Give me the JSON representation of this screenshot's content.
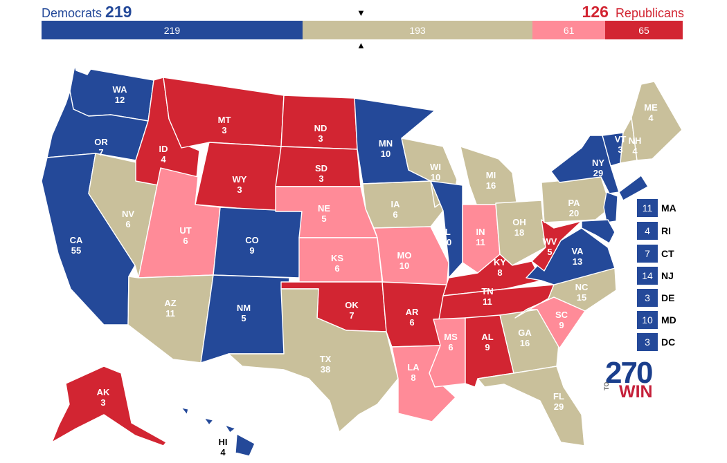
{
  "header": {
    "dem_label": "Democrats",
    "dem_total": "219",
    "rep_total": "126",
    "rep_label": "Republicans"
  },
  "colors": {
    "safe_dem": "#244999",
    "safe_rep": "#d22532",
    "lean_rep": "#ff8b98",
    "tossup": "#c9c09b",
    "dem_header": "#244999",
    "rep_header": "#d22532"
  },
  "bar": [
    {
      "value": "219",
      "votes": 219,
      "category": "safe_dem"
    },
    {
      "value": "193",
      "votes": 193,
      "category": "tossup"
    },
    {
      "value": "61",
      "votes": 61,
      "category": "lean_rep"
    },
    {
      "value": "65",
      "votes": 65,
      "category": "safe_rep"
    }
  ],
  "markers": {
    "top": "▼",
    "bottom": "▲"
  },
  "states": [
    {
      "abbr": "WA",
      "ev": "12",
      "cat": "safe_dem"
    },
    {
      "abbr": "OR",
      "ev": "7",
      "cat": "safe_dem"
    },
    {
      "abbr": "CA",
      "ev": "55",
      "cat": "safe_dem"
    },
    {
      "abbr": "NV",
      "ev": "6",
      "cat": "tossup"
    },
    {
      "abbr": "ID",
      "ev": "4",
      "cat": "safe_rep"
    },
    {
      "abbr": "MT",
      "ev": "3",
      "cat": "safe_rep"
    },
    {
      "abbr": "WY",
      "ev": "3",
      "cat": "safe_rep"
    },
    {
      "abbr": "UT",
      "ev": "6",
      "cat": "lean_rep"
    },
    {
      "abbr": "AZ",
      "ev": "11",
      "cat": "tossup"
    },
    {
      "abbr": "CO",
      "ev": "9",
      "cat": "safe_dem"
    },
    {
      "abbr": "NM",
      "ev": "5",
      "cat": "safe_dem"
    },
    {
      "abbr": "ND",
      "ev": "3",
      "cat": "safe_rep"
    },
    {
      "abbr": "SD",
      "ev": "3",
      "cat": "safe_rep"
    },
    {
      "abbr": "NE",
      "ev": "5",
      "cat": "lean_rep"
    },
    {
      "abbr": "KS",
      "ev": "6",
      "cat": "lean_rep"
    },
    {
      "abbr": "OK",
      "ev": "7",
      "cat": "safe_rep"
    },
    {
      "abbr": "TX",
      "ev": "38",
      "cat": "tossup"
    },
    {
      "abbr": "MN",
      "ev": "10",
      "cat": "safe_dem"
    },
    {
      "abbr": "IA",
      "ev": "6",
      "cat": "tossup"
    },
    {
      "abbr": "MO",
      "ev": "10",
      "cat": "lean_rep"
    },
    {
      "abbr": "AR",
      "ev": "6",
      "cat": "safe_rep"
    },
    {
      "abbr": "LA",
      "ev": "8",
      "cat": "lean_rep"
    },
    {
      "abbr": "WI",
      "ev": "10",
      "cat": "tossup"
    },
    {
      "abbr": "IL",
      "ev": "20",
      "cat": "safe_dem"
    },
    {
      "abbr": "MI",
      "ev": "16",
      "cat": "tossup"
    },
    {
      "abbr": "IN",
      "ev": "11",
      "cat": "lean_rep"
    },
    {
      "abbr": "OH",
      "ev": "18",
      "cat": "tossup"
    },
    {
      "abbr": "KY",
      "ev": "8",
      "cat": "safe_rep"
    },
    {
      "abbr": "TN",
      "ev": "11",
      "cat": "safe_rep"
    },
    {
      "abbr": "MS",
      "ev": "6",
      "cat": "lean_rep"
    },
    {
      "abbr": "AL",
      "ev": "9",
      "cat": "safe_rep"
    },
    {
      "abbr": "GA",
      "ev": "16",
      "cat": "tossup"
    },
    {
      "abbr": "FL",
      "ev": "29",
      "cat": "tossup"
    },
    {
      "abbr": "SC",
      "ev": "9",
      "cat": "lean_rep"
    },
    {
      "abbr": "NC",
      "ev": "15",
      "cat": "tossup"
    },
    {
      "abbr": "VA",
      "ev": "13",
      "cat": "safe_dem"
    },
    {
      "abbr": "WV",
      "ev": "5",
      "cat": "safe_rep"
    },
    {
      "abbr": "PA",
      "ev": "20",
      "cat": "tossup"
    },
    {
      "abbr": "NY",
      "ev": "29",
      "cat": "safe_dem"
    },
    {
      "abbr": "VT",
      "ev": "3",
      "cat": "safe_dem"
    },
    {
      "abbr": "NH",
      "ev": "4",
      "cat": "tossup"
    },
    {
      "abbr": "ME",
      "ev": "4",
      "cat": "tossup"
    },
    {
      "abbr": "AK",
      "ev": "3",
      "cat": "safe_rep"
    },
    {
      "abbr": "HI",
      "ev": "4",
      "cat": "safe_dem"
    }
  ],
  "small_states": [
    {
      "abbr": "MA",
      "ev": "11",
      "cat": "safe_dem"
    },
    {
      "abbr": "RI",
      "ev": "4",
      "cat": "safe_dem"
    },
    {
      "abbr": "CT",
      "ev": "7",
      "cat": "safe_dem"
    },
    {
      "abbr": "NJ",
      "ev": "14",
      "cat": "safe_dem"
    },
    {
      "abbr": "DE",
      "ev": "3",
      "cat": "safe_dem"
    },
    {
      "abbr": "MD",
      "ev": "10",
      "cat": "safe_dem"
    },
    {
      "abbr": "DC",
      "ev": "3",
      "cat": "safe_dem"
    }
  ],
  "logo": {
    "number": "270",
    "to": "TO",
    "win": "WIN"
  }
}
